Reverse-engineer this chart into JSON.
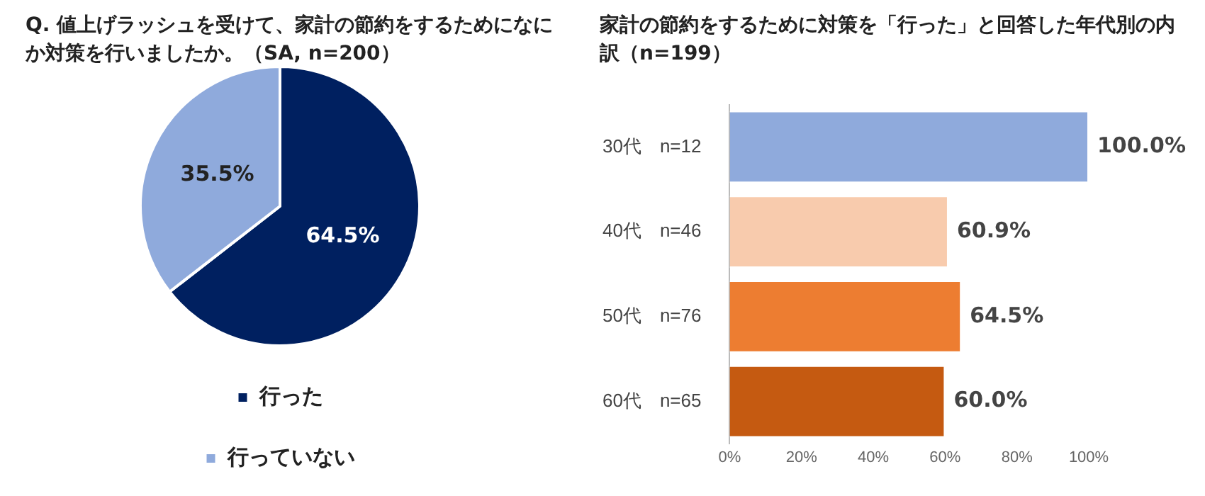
{
  "chart_data": [
    {
      "type": "pie",
      "title": "Q. 値上げラッシュを受けて、家計の節約をするためになにか対策を行いましたか。（SA, n=200）",
      "categories": [
        "行った",
        "行っていない"
      ],
      "values": [
        64.5,
        35.5
      ],
      "colors": [
        "#002060",
        "#8faadc"
      ],
      "legend": "bottom",
      "value_labels": [
        "64.5%",
        "35.5%"
      ]
    },
    {
      "type": "bar",
      "orientation": "horizontal",
      "title": "家計の節約をするために対策を「行った」と回答した年代別の内訳（n=199）",
      "categories": [
        "30代　n=12",
        "40代　n=46",
        "50代　n=76",
        "60代　n=65"
      ],
      "values": [
        100,
        60.9,
        64.5,
        60
      ],
      "colors": [
        "#8faadc",
        "#f8cbad",
        "#ed7d31",
        "#c55a11"
      ],
      "value_labels": [
        "100.0%",
        "60.9%",
        "64.5%",
        "60.0%"
      ],
      "xlim": [
        0,
        100
      ],
      "xticks": [
        {
          "value": 0,
          "label": "0%"
        },
        {
          "value": 20,
          "label": "20%"
        },
        {
          "value": 40,
          "label": "40%"
        },
        {
          "value": 60,
          "label": "60%"
        },
        {
          "value": 80,
          "label": "80%"
        },
        {
          "value": 100,
          "label": "100%"
        }
      ],
      "grid": false,
      "legend": false
    }
  ]
}
